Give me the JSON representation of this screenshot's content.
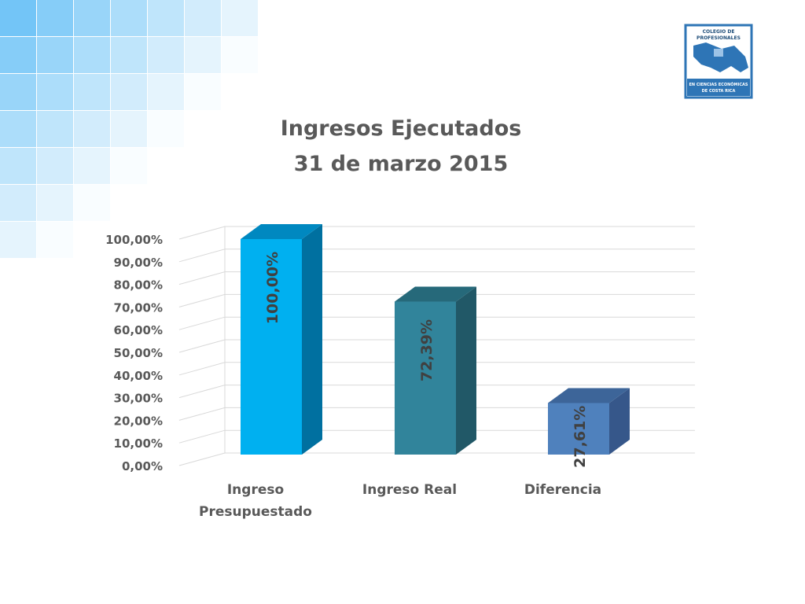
{
  "logo": {
    "top_text": "COLEGIO DE PROFESIONALES",
    "bottom_text": "EN CIENCIAS ECONÓMICAS DE COSTA RICA"
  },
  "chart_data": {
    "type": "bar",
    "title": "Ingresos Ejecutados",
    "subtitle": "31 de marzo 2015",
    "categories": [
      "Ingreso Presupuestado",
      "Ingreso Real",
      "Diferencia"
    ],
    "values": [
      100.0,
      72.39,
      27.61
    ],
    "data_labels": [
      "100,00%",
      "72,39%",
      "27,61%"
    ],
    "y_ticks": [
      "0,00%",
      "10,00%",
      "20,00%",
      "30,00%",
      "40,00%",
      "50,00%",
      "60,00%",
      "70,00%",
      "80,00%",
      "90,00%",
      "100,00%"
    ],
    "ylim": [
      0,
      100
    ],
    "grid": true,
    "legend": "none",
    "three_d": true,
    "colors": {
      "bars_front": [
        "#00b0f0",
        "#31849b",
        "#4f81bd"
      ],
      "bars_side": [
        "#0070a0",
        "#215867",
        "#36578a"
      ],
      "bars_top": [
        "#0088c0",
        "#26697a",
        "#3d6599"
      ],
      "text": "#595959",
      "grid": "#d9d9d9"
    }
  }
}
